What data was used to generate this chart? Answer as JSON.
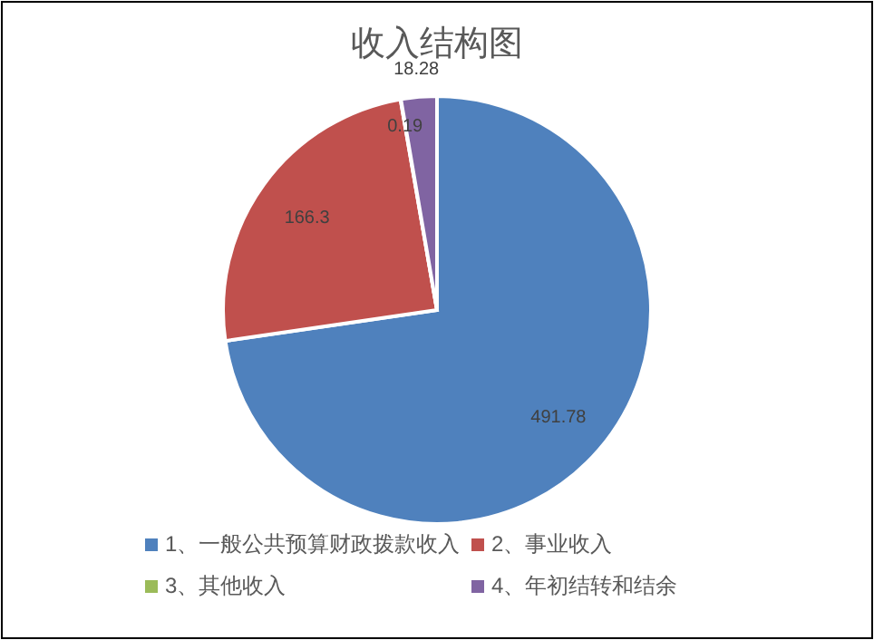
{
  "chart_data": {
    "type": "pie",
    "title": "收入结构图",
    "categories": [
      "1、一般公共预算财政拨款收入",
      "2、事业收入",
      "3、其他收入",
      "4、年初结转和结余"
    ],
    "values": [
      491.78,
      166.3,
      0.19,
      18.28
    ],
    "colors": [
      "#4f81bd",
      "#c0504d",
      "#9bbb59",
      "#8064a2"
    ],
    "data_labels": true,
    "legend": "bottom"
  }
}
